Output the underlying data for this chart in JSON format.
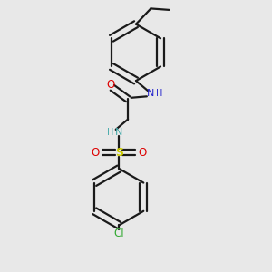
{
  "bg_color": "#e8e8e8",
  "bond_color": "#1a1a1a",
  "N_color_top": "#2222cc",
  "N_color_bottom": "#44aaaa",
  "O_color": "#dd0000",
  "S_color": "#cccc00",
  "Cl_color": "#33aa33",
  "lw": 1.6,
  "ring_r": 0.105,
  "dbl_off": 0.013,
  "fig_w": 3.0,
  "fig_h": 3.0,
  "dpi": 100,
  "xlim": [
    0,
    1
  ],
  "ylim": [
    0,
    1
  ]
}
